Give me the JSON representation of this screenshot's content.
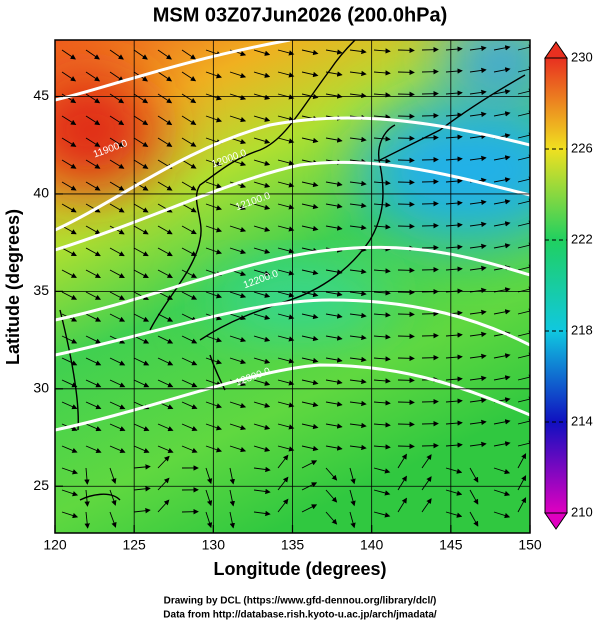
{
  "chart_data": {
    "type": "map",
    "title": "MSM 03Z07Jun2026 (200.0hPa)",
    "x_label": "Longitude (degrees)",
    "y_label": "Latitude  (degrees)",
    "xlim": [
      120,
      150
    ],
    "ylim": [
      22.6,
      47.9
    ],
    "xticks": [
      120,
      125,
      130,
      135,
      140,
      145,
      150
    ],
    "yticks": [
      25,
      30,
      35,
      40,
      45
    ],
    "grid": true,
    "colorbar": {
      "lim": [
        210,
        230
      ],
      "ticks": [
        210,
        214,
        218,
        222,
        226,
        230
      ],
      "colors": [
        "#e000c0",
        "#1010c0",
        "#10c8e0",
        "#20d060",
        "#f0e020",
        "#e83020"
      ]
    },
    "contour_labels": [
      {
        "label": "11900.0",
        "lon": 123.5,
        "lat": 42.3
      },
      {
        "label": "12000.0",
        "lon": 131.0,
        "lat": 41.8
      },
      {
        "label": "12100.0",
        "lon": 132.5,
        "lat": 39.6
      },
      {
        "label": "12200.0",
        "lon": 133.0,
        "lat": 35.6
      },
      {
        "label": "12300.0",
        "lon": 132.5,
        "lat": 30.6
      }
    ],
    "footer": [
      "Drawing by DCL (https://www.gfd-dennou.org/library/dcl/)",
      "Data from http://database.rish.kyoto-u.ac.jp/arch/jmadata/"
    ]
  }
}
